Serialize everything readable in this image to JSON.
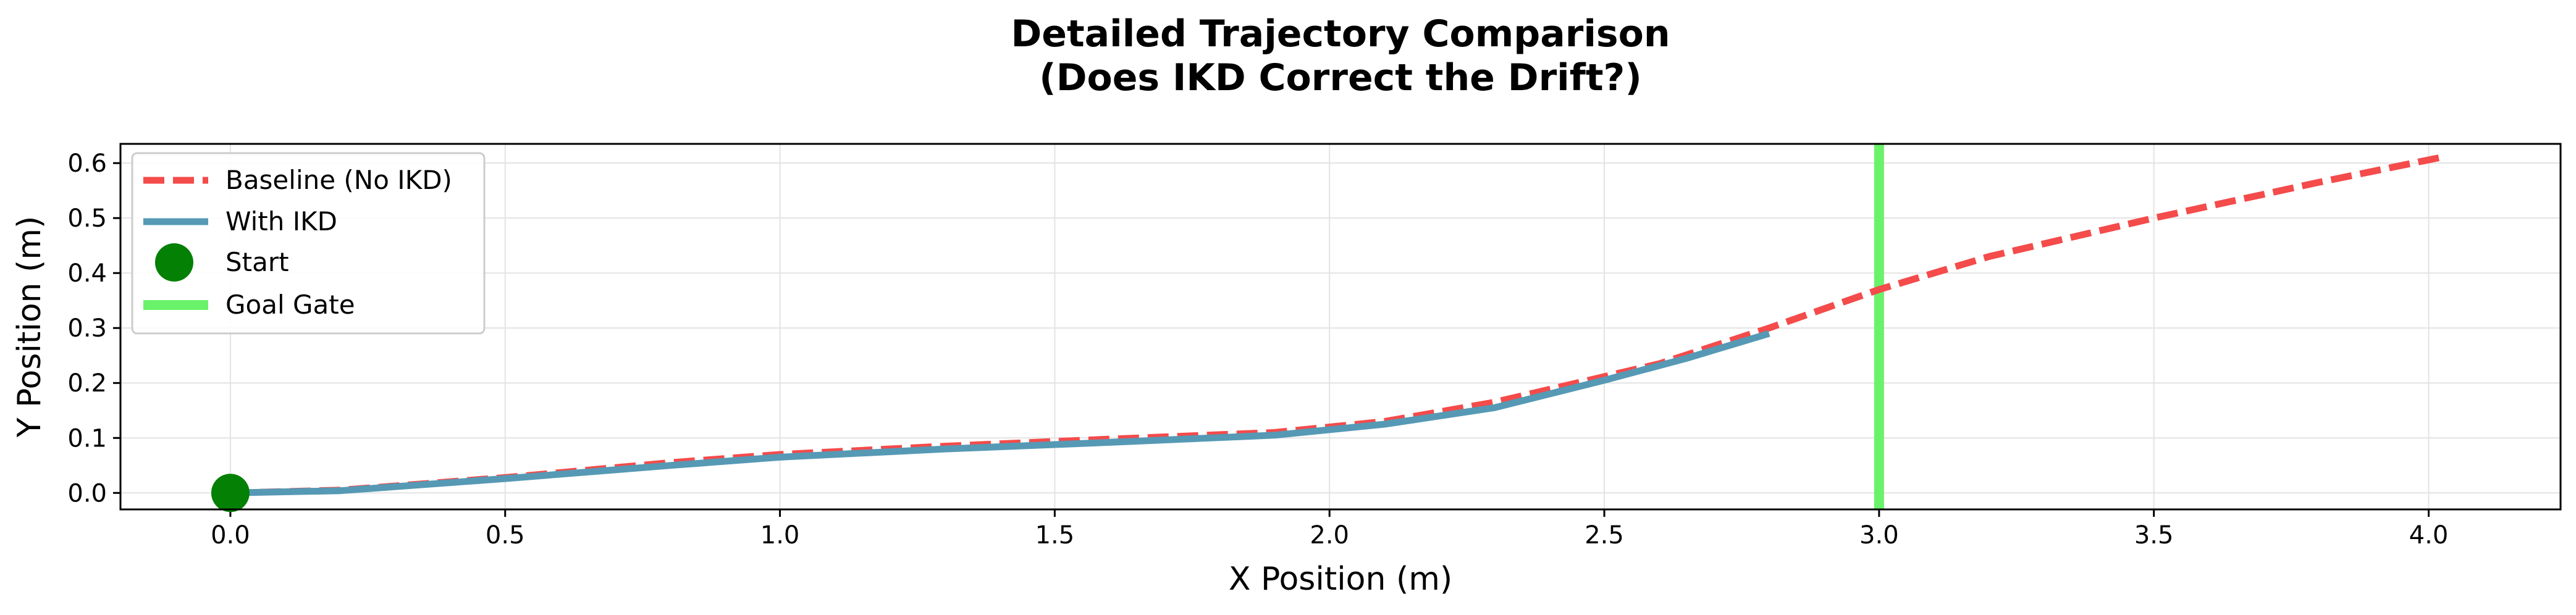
{
  "chart_data": {
    "type": "line",
    "title_lines": [
      "Detailed Trajectory Comparison",
      "(Does IKD Correct the Drift?)"
    ],
    "xlabel": "X Position (m)",
    "ylabel": "Y Position (m)",
    "xlim": [
      -0.2,
      4.24
    ],
    "ylim": [
      -0.03,
      0.635
    ],
    "x_ticks": [
      "0.0",
      "0.5",
      "1.0",
      "1.5",
      "2.0",
      "2.5",
      "3.0",
      "3.5",
      "4.0"
    ],
    "y_ticks": [
      "0.0",
      "0.1",
      "0.2",
      "0.3",
      "0.4",
      "0.5",
      "0.6"
    ],
    "grid": true,
    "legend_position": "upper-left",
    "series": [
      {
        "name": "Baseline (No IKD)",
        "style": "dashed",
        "color": "#f44b4b",
        "points": [
          [
            0,
            0
          ],
          [
            0.2,
            0.005
          ],
          [
            0.5,
            0.028
          ],
          [
            0.8,
            0.055
          ],
          [
            1.0,
            0.07
          ],
          [
            1.3,
            0.085
          ],
          [
            1.6,
            0.098
          ],
          [
            1.9,
            0.11
          ],
          [
            2.1,
            0.13
          ],
          [
            2.3,
            0.165
          ],
          [
            2.6,
            0.235
          ],
          [
            2.8,
            0.3
          ],
          [
            3.0,
            0.37
          ],
          [
            3.2,
            0.43
          ],
          [
            3.5,
            0.5
          ],
          [
            3.8,
            0.565
          ],
          [
            4.02,
            0.61
          ]
        ]
      },
      {
        "name": "With IKD",
        "style": "solid",
        "color": "#5699b5",
        "points": [
          [
            0,
            0
          ],
          [
            0.2,
            0.004
          ],
          [
            0.5,
            0.026
          ],
          [
            0.8,
            0.05
          ],
          [
            1.0,
            0.065
          ],
          [
            1.3,
            0.08
          ],
          [
            1.6,
            0.092
          ],
          [
            1.9,
            0.105
          ],
          [
            2.1,
            0.125
          ],
          [
            2.3,
            0.155
          ],
          [
            2.5,
            0.205
          ],
          [
            2.65,
            0.245
          ],
          [
            2.8,
            0.29
          ]
        ]
      }
    ],
    "start_marker": {
      "name": "Start",
      "x": 0,
      "y": 0,
      "color": "#048004"
    },
    "goal_gate": {
      "name": "Goal Gate",
      "x": 3.0,
      "color": "#6af26a"
    }
  }
}
